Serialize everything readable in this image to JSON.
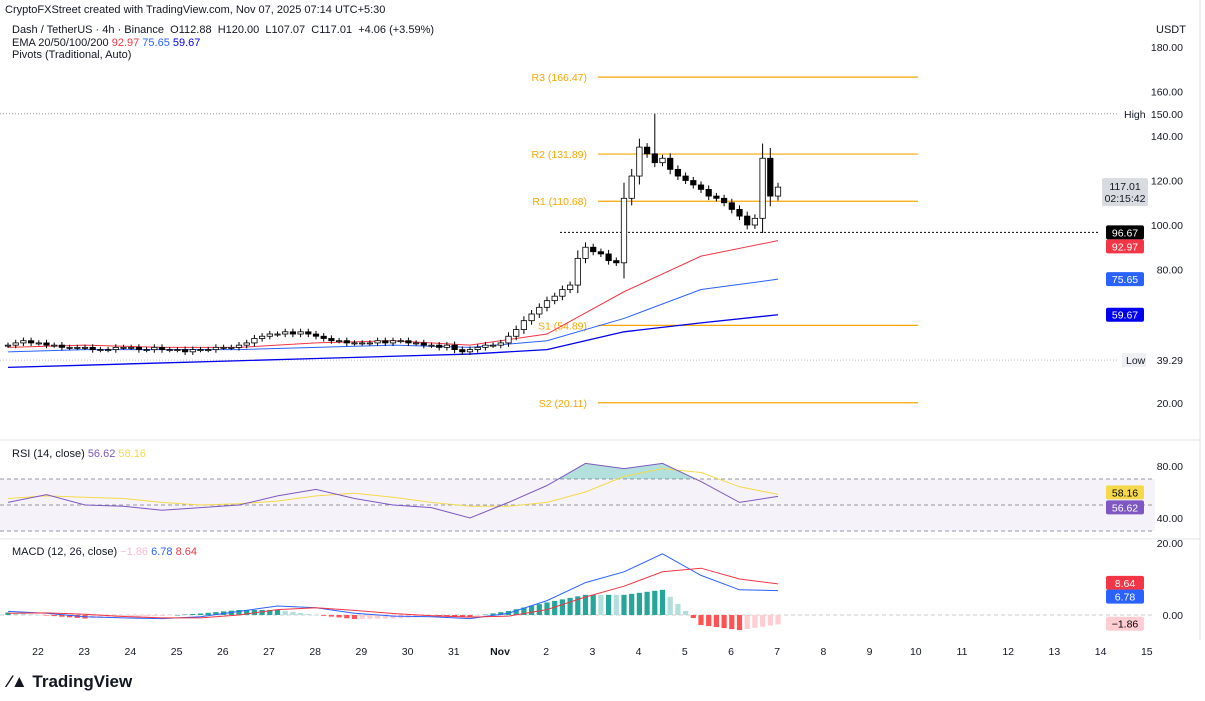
{
  "header": {
    "credit": "CryptoFXStreet created with TradingView.com, Nov 07, 2025 07:14 UTC+5:30",
    "symbol": "Dash / TetherUS · 4h · Binance",
    "open": "O112.88",
    "high": "H120.00",
    "low": "L107.07",
    "close": "C117.01",
    "change": "+4.06 (+3.59%)",
    "ema_label": "EMA 20/50/100/200",
    "ema_values": [
      "92.97",
      "75.65",
      "59.67"
    ],
    "pivots_label": "Pivots (Traditional, Auto)"
  },
  "colors": {
    "up": "#ffffff",
    "down": "#000000",
    "ema20": "#f23645",
    "ema50": "#2962ff",
    "ema200": "#0000ee",
    "pivot": "#f7a600",
    "rsi": "#7e57c2",
    "rsi_ma": "#f5d94a",
    "macd": "#2962ff",
    "signal": "#f23645",
    "hist_up": "#26a69a",
    "hist_down": "#ff5252"
  },
  "chart_data": [
    {
      "type": "candlestick",
      "title": "Dash / TetherUS · 4h · Binance",
      "currency": "USDT",
      "ylim": [
        20,
        180
      ],
      "y_ticks": [
        "180.00",
        "160.00",
        "140.00",
        "120.00",
        "100.00",
        "80.00",
        "20.00"
      ],
      "x_ticks": [
        "22",
        "23",
        "24",
        "25",
        "26",
        "27",
        "28",
        "29",
        "30",
        "31",
        "Nov",
        "2",
        "3",
        "4",
        "5",
        "6",
        "7",
        "8",
        "9",
        "10",
        "11",
        "12",
        "13",
        "14",
        "15"
      ],
      "closes": [
        46,
        47,
        48,
        47,
        47,
        46,
        46,
        45,
        45,
        45,
        45,
        44,
        44,
        44,
        45,
        45,
        45,
        44,
        44,
        45,
        44,
        44,
        44,
        43,
        44,
        44,
        44,
        45,
        45,
        45,
        46,
        47,
        49,
        50,
        51,
        51,
        52,
        51,
        52,
        51,
        50,
        49,
        48,
        48,
        47,
        47,
        47,
        47,
        48,
        47,
        48,
        48,
        47,
        47,
        46,
        46,
        45,
        46,
        44,
        43,
        44,
        45,
        46,
        46,
        47,
        50,
        53,
        57,
        60,
        63,
        66,
        68,
        71,
        73,
        85,
        90,
        88,
        87,
        84,
        83,
        112,
        122,
        135,
        132,
        128,
        130,
        125,
        122,
        120,
        118,
        116,
        113,
        112,
        110,
        107,
        104,
        100,
        103,
        130,
        113,
        117.01
      ],
      "notable_highs": {
        "84": 150
      },
      "pivots": [
        {
          "label": "R3 (166.47)",
          "value": 166.47
        },
        {
          "label": "R2 (131.89)",
          "value": 131.89
        },
        {
          "label": "R1 (110.68)",
          "value": 110.68
        },
        {
          "label": "S1 (54.89)",
          "value": 54.89
        },
        {
          "label": "S2 (20.11)",
          "value": 20.11
        }
      ],
      "ema": {
        "ema20": [
          45,
          46,
          45,
          45,
          47,
          48,
          46,
          51,
          70,
          86,
          92.97
        ],
        "ema50": [
          43,
          44,
          44,
          44,
          45,
          46,
          45,
          48,
          58,
          71,
          75.65
        ],
        "ema200": [
          36,
          37,
          38,
          39,
          40,
          41,
          42,
          44,
          52,
          56,
          59.67
        ]
      },
      "high_marker": {
        "label": "High",
        "value": "150.00"
      },
      "low_marker": {
        "label": "Low",
        "value": "39.29"
      },
      "badges": {
        "last": "117.01",
        "countdown": "02:15:42",
        "prev_level": "96.67",
        "ema20": "92.97",
        "ema50": "75.65",
        "ema200": "59.67"
      }
    },
    {
      "type": "line",
      "title": "RSI (14, close)",
      "values_label": [
        "56.62",
        "58.16"
      ],
      "ylim": [
        20,
        90
      ],
      "y_ticks": [
        "80.00",
        "40.00"
      ],
      "band": [
        30,
        70
      ],
      "rsi": [
        52,
        58,
        50,
        49,
        46,
        48,
        50,
        57,
        62,
        55,
        50,
        48,
        40,
        52,
        65,
        82,
        78,
        82,
        68,
        52,
        56.62
      ],
      "ma": [
        55,
        57,
        56,
        55,
        52,
        50,
        51,
        53,
        57,
        59,
        56,
        52,
        49,
        49,
        52,
        60,
        72,
        78,
        75,
        64,
        58.16
      ],
      "badges": [
        "58.16",
        "56.62"
      ]
    },
    {
      "type": "line",
      "title": "MACD (12, 26, close)",
      "values_label": [
        "−1.86",
        "6.78",
        "8.64"
      ],
      "y_ticks": [
        "20.00",
        "0.00"
      ],
      "macd": [
        1,
        0.5,
        -0.5,
        -0.8,
        -1,
        -0.5,
        1,
        2.5,
        2,
        0.5,
        -0.3,
        -0.5,
        -1,
        0.5,
        4,
        9,
        12,
        17,
        11,
        7,
        6.78
      ],
      "signal": [
        0.5,
        0.6,
        0.2,
        -0.4,
        -0.8,
        -0.8,
        0,
        1.5,
        2,
        1.3,
        0.4,
        -0.2,
        -0.6,
        -0.3,
        1.5,
        5,
        8,
        12,
        13,
        10,
        8.64
      ],
      "badges": [
        "8.64",
        "6.78",
        "−1.86"
      ]
    }
  ],
  "logo": "TradingView"
}
